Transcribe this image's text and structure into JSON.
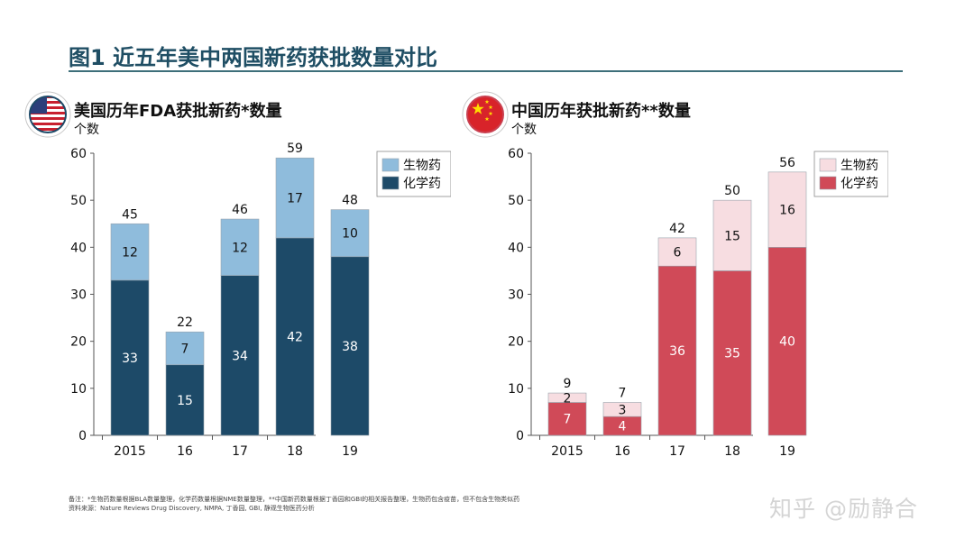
{
  "title": "图1 近五年美中两国新药获批数量对比",
  "colors": {
    "title": "#1f4e64",
    "us_bio": "#8fbcdc",
    "us_chem": "#1d4a68",
    "cn_bio": "#f7dde1",
    "cn_chem": "#d04a58"
  },
  "chart_data": [
    {
      "type": "bar",
      "stacked": true,
      "title": "美国历年FDA获批新药*数量",
      "ylabel": "个数",
      "flag_icon": "us-flag-icon",
      "categories": [
        "2015",
        "16",
        "17",
        "18",
        "19"
      ],
      "ylim": [
        0,
        60
      ],
      "yticks": [
        0,
        10,
        20,
        30,
        40,
        50,
        60
      ],
      "series": [
        {
          "name": "化学药",
          "values": [
            33,
            15,
            34,
            42,
            38
          ]
        },
        {
          "name": "生物药",
          "values": [
            12,
            7,
            12,
            17,
            10
          ]
        }
      ],
      "totals": [
        45,
        22,
        46,
        59,
        48
      ],
      "legend": [
        "生物药",
        "化学药"
      ],
      "legend_position": "top-right"
    },
    {
      "type": "bar",
      "stacked": true,
      "title": "中国历年获批新药**数量",
      "ylabel": "个数",
      "flag_icon": "cn-flag-icon",
      "categories": [
        "2015",
        "16",
        "17",
        "18",
        "19"
      ],
      "ylim": [
        0,
        60
      ],
      "yticks": [
        0,
        10,
        20,
        30,
        40,
        50,
        60
      ],
      "series": [
        {
          "name": "化学药",
          "values": [
            7,
            4,
            36,
            35,
            40
          ]
        },
        {
          "name": "生物药",
          "values": [
            2,
            3,
            6,
            15,
            16
          ]
        }
      ],
      "totals": [
        9,
        7,
        42,
        50,
        56
      ],
      "legend": [
        "生物药",
        "化学药"
      ],
      "legend_position": "top-right"
    }
  ],
  "footnote": {
    "note": "备注：*生物药数量根据BLA数量整理，化学药数量根据NME数量整理，**中国新药数量根据丁香园和GBI的相关报告整理，生物药包含疫苗，但不包含生物类似药",
    "source": "资料来源：Nature Reviews Drug Discovery, NMPA, 丁香园, GBI, 静观生物医药分析"
  },
  "watermark": "知乎 @励静合"
}
